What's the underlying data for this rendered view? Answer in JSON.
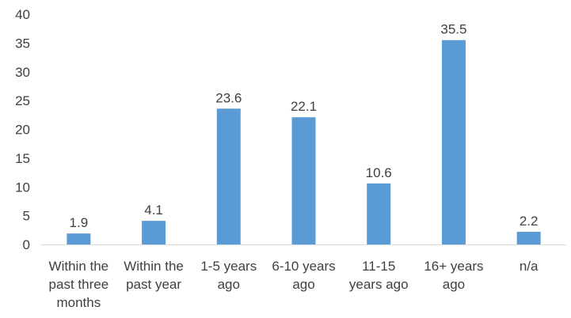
{
  "chart_data": {
    "type": "bar",
    "categories": [
      [
        "Within the",
        "past three",
        "months"
      ],
      [
        "Within the",
        "past year"
      ],
      [
        "1-5 years",
        "ago"
      ],
      [
        "6-10 years",
        "ago"
      ],
      [
        "11-15",
        "years ago"
      ],
      [
        "16+ years",
        "ago"
      ],
      [
        "n/a"
      ]
    ],
    "values": [
      1.9,
      4.1,
      23.6,
      22.1,
      10.6,
      35.5,
      2.2
    ],
    "value_labels": [
      "1.9",
      "4.1",
      "23.6",
      "22.1",
      "10.6",
      "35.5",
      "2.2"
    ],
    "y_ticks": [
      0,
      5,
      10,
      15,
      20,
      25,
      30,
      35,
      40
    ],
    "ylim": [
      0,
      40
    ],
    "title": "",
    "xlabel": "",
    "ylabel": "",
    "grid": false,
    "legend": "none",
    "colors": {
      "bar": "#5B9BD5",
      "axis": "#D9D9D9",
      "text": "#404040"
    }
  }
}
